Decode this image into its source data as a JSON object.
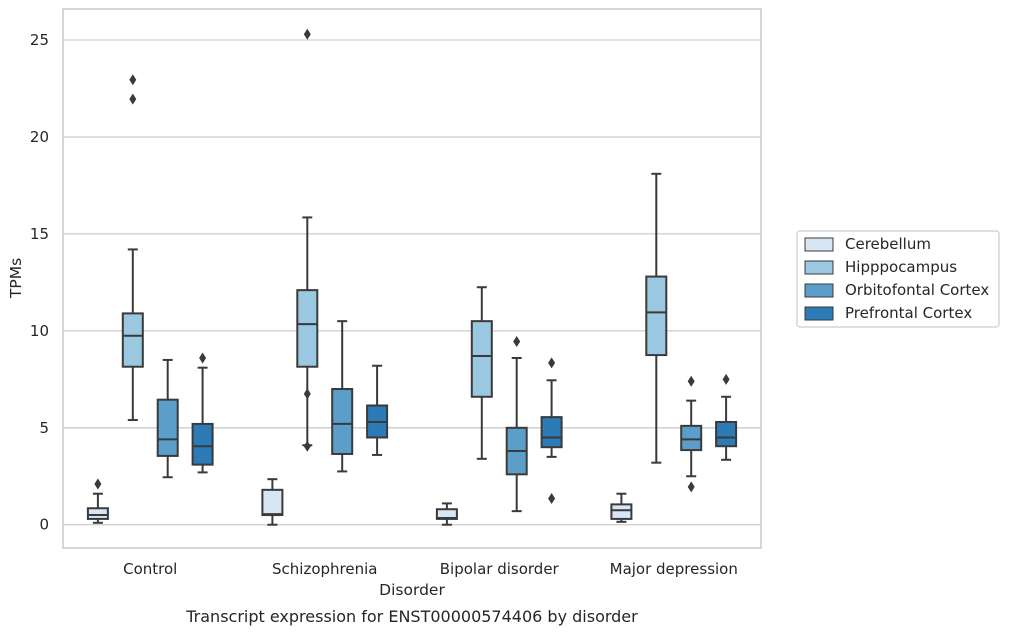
{
  "chart_data": {
    "type": "box",
    "title": "",
    "caption": "Transcript expression for ENST00000574406 by disorder",
    "xlabel": "Disorder",
    "ylabel": "TPMs",
    "ylim": [
      -1.2,
      26.6
    ],
    "yticks": [
      0,
      5,
      10,
      15,
      20,
      25
    ],
    "grid": "horizontal",
    "legend_position": "right",
    "categories": [
      "Control",
      "Schizophrenia",
      "Bipolar disorder",
      "Major depression"
    ],
    "series": [
      {
        "name": "Cerebellum",
        "color": "#d6e6f4",
        "boxes": [
          {
            "whislo": 0.1,
            "q1": 0.3,
            "med": 0.5,
            "q3": 0.85,
            "whishi": 1.6,
            "fliers": [
              2.1
            ]
          },
          {
            "whislo": 0.0,
            "q1": 0.5,
            "med": 0.55,
            "q3": 1.8,
            "whishi": 2.35,
            "fliers": []
          },
          {
            "whislo": 0.0,
            "q1": 0.3,
            "med": 0.35,
            "q3": 0.8,
            "whishi": 1.1,
            "fliers": []
          },
          {
            "whislo": 0.15,
            "q1": 0.3,
            "med": 0.75,
            "q3": 1.05,
            "whishi": 1.6,
            "fliers": []
          }
        ]
      },
      {
        "name": "Hipppocampus",
        "color": "#9ac8e0",
        "boxes": [
          {
            "whislo": 5.4,
            "q1": 8.15,
            "med": 9.75,
            "q3": 10.9,
            "whishi": 14.2,
            "fliers": [
              21.95,
              22.95
            ]
          },
          {
            "whislo": 4.1,
            "q1": 8.15,
            "med": 10.35,
            "q3": 12.1,
            "whishi": 15.85,
            "fliers": [
              4.05,
              6.75,
              25.3
            ]
          },
          {
            "whislo": 3.4,
            "q1": 6.6,
            "med": 8.7,
            "q3": 10.5,
            "whishi": 12.25,
            "fliers": []
          },
          {
            "whislo": 3.2,
            "q1": 8.75,
            "med": 10.95,
            "q3": 12.8,
            "whishi": 18.1,
            "fliers": []
          }
        ]
      },
      {
        "name": "Orbitofontal Cortex",
        "color": "#5a9ec9",
        "boxes": [
          {
            "whislo": 2.45,
            "q1": 3.55,
            "med": 4.4,
            "q3": 6.45,
            "whishi": 8.5,
            "fliers": []
          },
          {
            "whislo": 2.75,
            "q1": 3.65,
            "med": 5.2,
            "q3": 7.0,
            "whishi": 10.5,
            "fliers": []
          },
          {
            "whislo": 0.7,
            "q1": 2.6,
            "med": 3.8,
            "q3": 5.0,
            "whishi": 8.6,
            "fliers": [
              9.45
            ]
          },
          {
            "whislo": 2.5,
            "q1": 3.85,
            "med": 4.4,
            "q3": 5.1,
            "whishi": 6.4,
            "fliers": [
              1.95,
              7.4
            ]
          }
        ]
      },
      {
        "name": "Prefrontal Cortex",
        "color": "#2c7bb6",
        "boxes": [
          {
            "whislo": 2.7,
            "q1": 3.1,
            "med": 4.05,
            "q3": 5.2,
            "whishi": 8.1,
            "fliers": [
              8.6
            ]
          },
          {
            "whislo": 3.6,
            "q1": 4.5,
            "med": 5.3,
            "q3": 6.15,
            "whishi": 8.2,
            "fliers": []
          },
          {
            "whislo": 3.5,
            "q1": 4.0,
            "med": 4.5,
            "q3": 5.55,
            "whishi": 7.45,
            "fliers": [
              1.35,
              8.35
            ]
          },
          {
            "whislo": 3.35,
            "q1": 4.05,
            "med": 4.5,
            "q3": 5.3,
            "whishi": 6.6,
            "fliers": [
              7.5
            ]
          }
        ]
      }
    ]
  }
}
